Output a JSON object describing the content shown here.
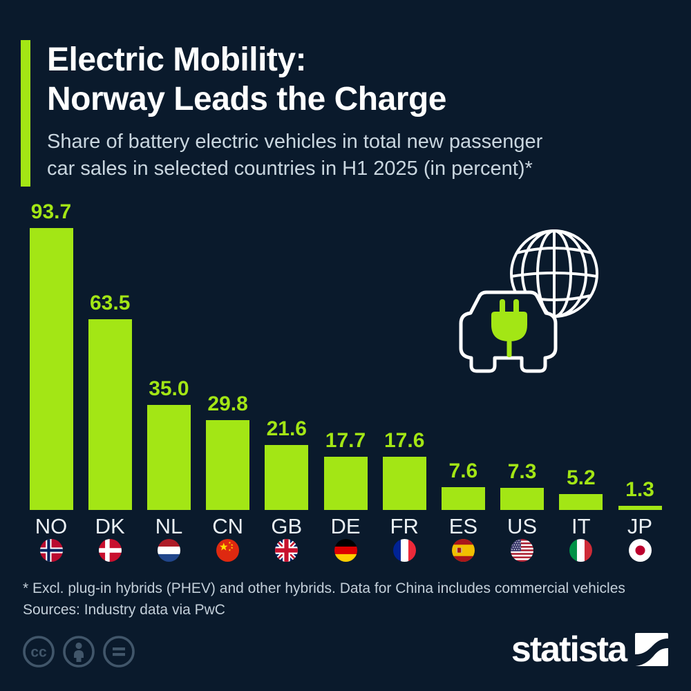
{
  "header": {
    "title_line1": "Electric Mobility:",
    "title_line2": "Norway Leads the Charge",
    "subtitle_line1": "Share of battery electric vehicles in total new passenger",
    "subtitle_line2": "car sales in selected countries in H1 2025 (in percent)*",
    "accent_color": "#a3e615"
  },
  "chart_data": {
    "type": "bar",
    "title": "Electric Mobility: Norway Leads the Charge",
    "unit": "percent of new passenger car sales",
    "categories": [
      "NO",
      "DK",
      "NL",
      "CN",
      "GB",
      "DE",
      "FR",
      "ES",
      "US",
      "IT",
      "JP"
    ],
    "values": [
      93.7,
      63.5,
      35.0,
      29.8,
      21.6,
      17.7,
      17.6,
      7.6,
      7.3,
      5.2,
      1.3
    ],
    "value_labels": [
      "93.7",
      "63.5",
      "35.0",
      "29.8",
      "21.6",
      "17.7",
      "17.6",
      "7.6",
      "7.3",
      "5.2",
      "1.3"
    ],
    "flags": [
      "no",
      "dk",
      "nl",
      "cn",
      "gb",
      "de",
      "fr",
      "es",
      "us",
      "it",
      "jp"
    ],
    "bar_color": "#a3e615",
    "ylim": [
      0,
      100
    ],
    "grid": false,
    "legend": false
  },
  "illustration": {
    "icons": [
      "globe-icon",
      "car-icon",
      "plug-icon"
    ],
    "plug_color": "#a3e615",
    "line_color": "#ffffff"
  },
  "footnotes": {
    "note": "* Excl. plug-in hybrids (PHEV) and other hybrids. Data for China includes commercial vehicles",
    "source": "Sources: Industry data via PwC"
  },
  "branding": {
    "logo_text": "statista",
    "license_icons": [
      "cc-icon",
      "attribution-icon",
      "no-derivatives-icon"
    ]
  },
  "colors": {
    "background": "#0a1a2c",
    "green": "#a3e615",
    "title": "#ffffff",
    "subtitle": "#c9d6df",
    "category_label": "#eaf0f4",
    "footnote": "#c3cfd9",
    "license_icon": "#41566a"
  }
}
